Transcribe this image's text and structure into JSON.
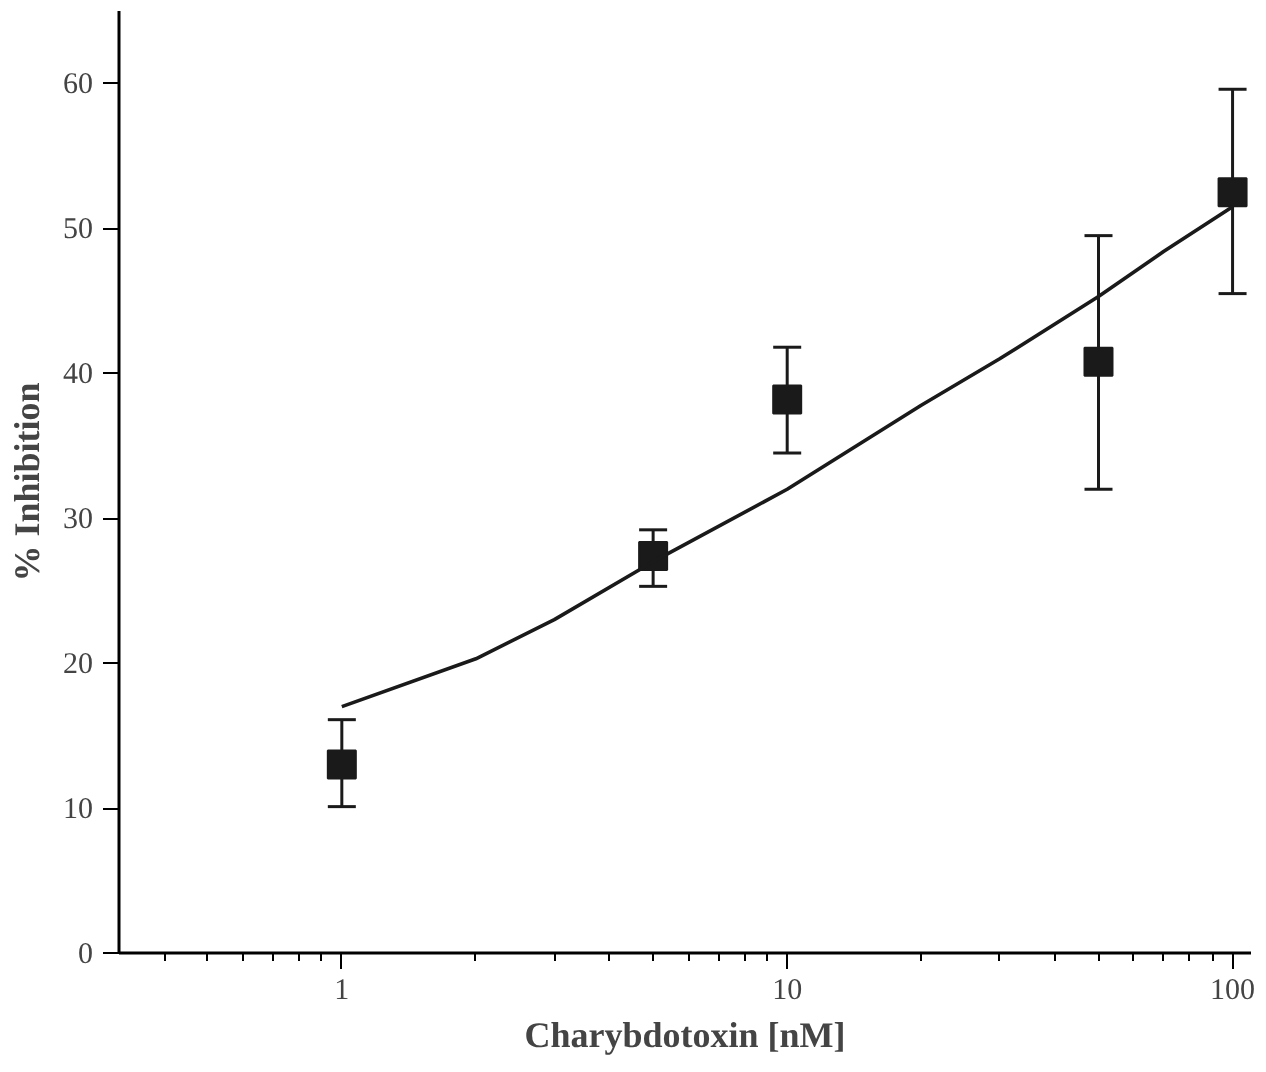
{
  "chart_data": {
    "type": "scatter",
    "xlabel": "Charybdotoxin [nM]",
    "ylabel": "% Inhibition",
    "log": "x",
    "xlim": [
      0.316,
      110
    ],
    "xticks": [
      1,
      10,
      100
    ],
    "ylim": [
      0,
      65
    ],
    "yticks": [
      0,
      10,
      20,
      30,
      40,
      50,
      60
    ],
    "grid": false,
    "series": [
      {
        "marker": "square",
        "color": "#1a1a1a",
        "x": [
          1,
          5,
          10,
          50,
          100
        ],
        "values": [
          13,
          27.4,
          38.2,
          40.8,
          52.5
        ],
        "errors": [
          [
            10.1,
            16.1
          ],
          [
            25.3,
            29.2
          ],
          [
            34.5,
            41.8
          ],
          [
            32,
            49.5
          ],
          [
            45.5,
            59.6
          ]
        ]
      },
      {
        "type": "line",
        "marker": "none",
        "line_style": "solid",
        "color": "#1a1a1a",
        "x": [
          1,
          2,
          3,
          5,
          10,
          20,
          30,
          50,
          70,
          100
        ],
        "values": [
          17,
          20.3,
          23,
          27,
          32,
          37.8,
          41,
          45.3,
          48.4,
          51.5
        ]
      }
    ]
  }
}
